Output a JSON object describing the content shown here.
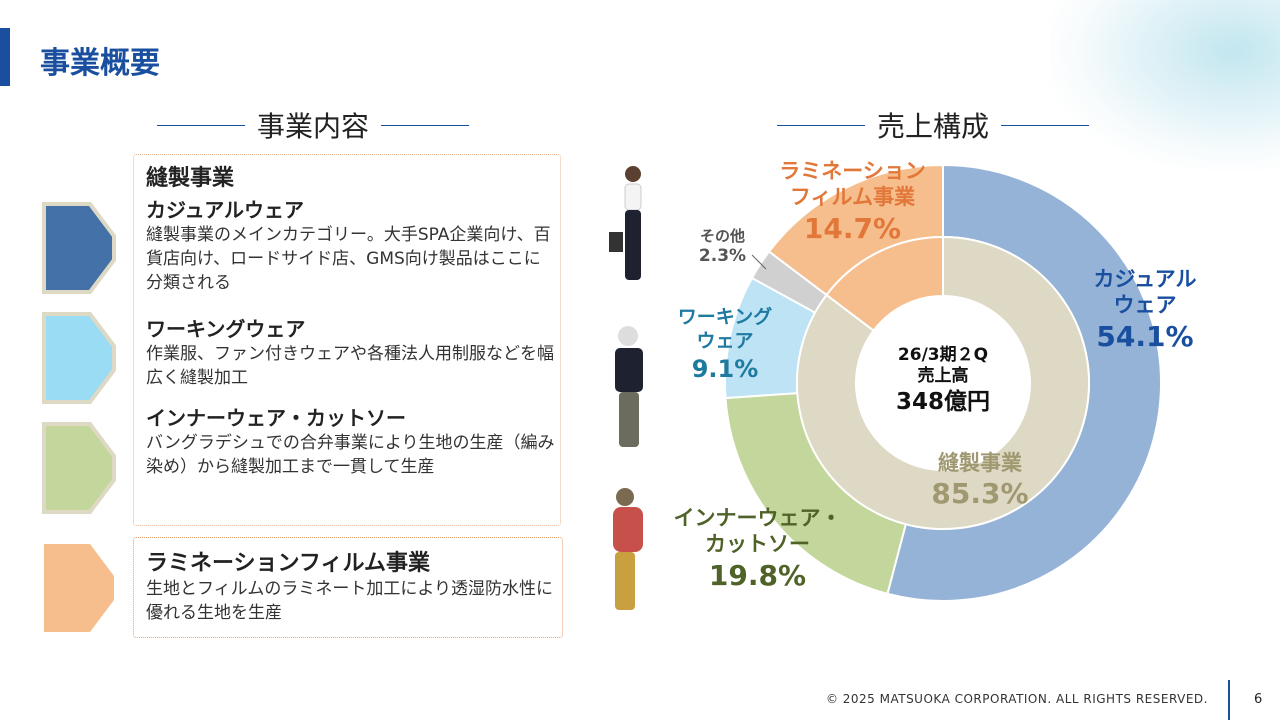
{
  "header": {
    "title": "事業概要"
  },
  "left": {
    "heading": "事業内容",
    "sewing": {
      "title": "縫製事業",
      "items": [
        {
          "name": "カジュアルウェア",
          "desc": "縫製事業のメインカテゴリー。大手SPA企業向け、百貨店向け、ロードサイド店、GMS向け製品はここに分類される",
          "color": "#4472a8"
        },
        {
          "name": "ワーキングウェア",
          "desc": "作業服、ファン付きウェアや各種法人用制服などを幅広く縫製加工",
          "color": "#9adcf4"
        },
        {
          "name": "インナーウェア・カットソー",
          "desc": "バングラデシュでの合弁事業により生地の生産（編み染め）から縫製加工まで一貫して生産",
          "color": "#c3d69b"
        }
      ]
    },
    "lamination": {
      "name": "ラミネーションフィルム事業",
      "desc": "生地とフィルムのラミネート加工により透湿防水性に優れる生地を生産",
      "color": "#f7be8d"
    }
  },
  "right": {
    "heading": "売上構成"
  },
  "chart_data": {
    "type": "pie",
    "subtype": "nested-donut",
    "title": "売上構成",
    "center": {
      "period": "26/3期２Q",
      "label": "売上高",
      "value": "348億円"
    },
    "outer": [
      {
        "name": "カジュアルウェア",
        "lines": [
          "カジュアル",
          "ウェア"
        ],
        "value": 54.1,
        "label": "54.1%",
        "color": "#95b3d7",
        "text_color": "#1a4fa0"
      },
      {
        "name": "インナーウェア・カットソー",
        "lines": [
          "インナーウェア・",
          "カットソー"
        ],
        "value": 19.8,
        "label": "19.8%",
        "color": "#c3d69b",
        "text_color": "#4f6228"
      },
      {
        "name": "ワーキングウェア",
        "lines": [
          "ワーキング",
          "ウェア"
        ],
        "value": 9.1,
        "label": "9.1%",
        "color": "#bde3f5",
        "text_color": "#1f7aa0"
      },
      {
        "name": "その他",
        "lines": [
          "その他"
        ],
        "value": 2.3,
        "label": "2.3%",
        "color": "#d0d0d0",
        "text_color": "#555"
      },
      {
        "name": "ラミネーションフィルム事業",
        "lines": [
          "ラミネーション",
          "フィルム事業"
        ],
        "value": 14.7,
        "label": "14.7%",
        "color": "#f7be8d",
        "text_color": "#e2773a"
      }
    ],
    "inner": [
      {
        "name": "縫製事業",
        "value": 85.3,
        "label": "85.3%",
        "color": "#ddd9c4",
        "text_color": "#a09870"
      },
      {
        "name": "ラミネーションフィルム事業",
        "value": 14.7,
        "color": "#f7be8d"
      }
    ]
  },
  "footer": {
    "copyright": "© 2025 MATSUOKA CORPORATION. ALL RIGHTS RESERVED.",
    "page": "6"
  }
}
